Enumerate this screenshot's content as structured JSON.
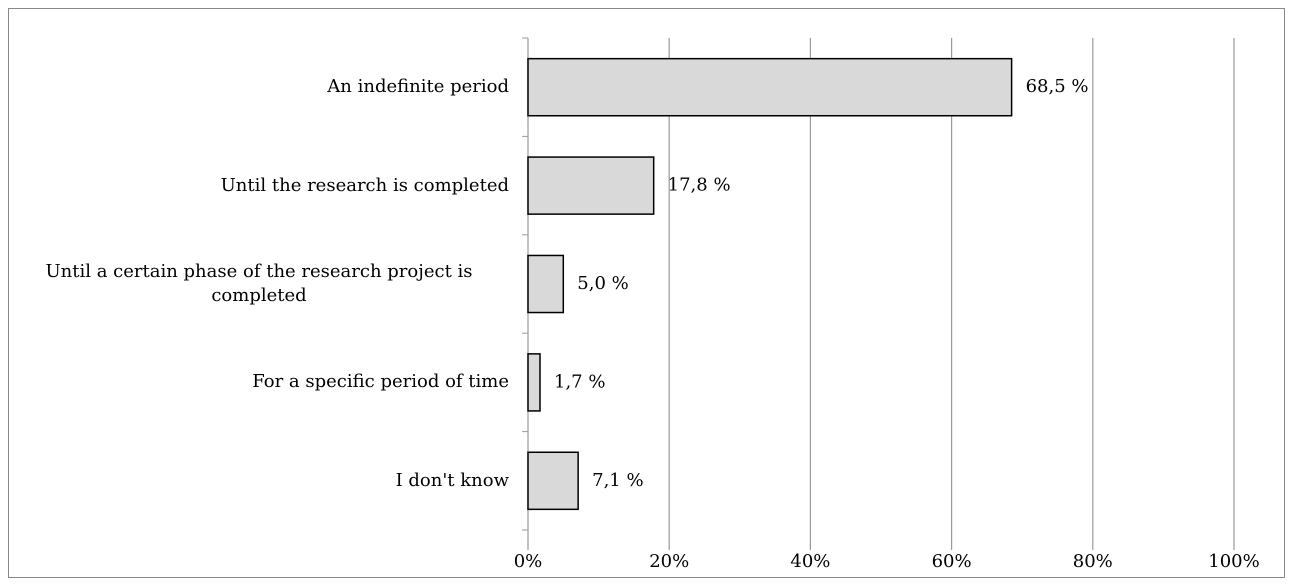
{
  "chart_data": {
    "type": "bar",
    "orientation": "horizontal",
    "categories": [
      "An indefinite period",
      "Until the research is completed",
      "Until a certain phase of the research project is completed",
      "For a specific period of time",
      "I don't know"
    ],
    "values": [
      68.5,
      17.8,
      5.0,
      1.7,
      7.1
    ],
    "value_labels": [
      "68,5 %",
      "17,8 %",
      "5,0 %",
      "1,7 %",
      "7,1 %"
    ],
    "color": "#d9d9d9",
    "xlim": [
      0,
      100
    ],
    "xticks": [
      {
        "value": 0,
        "label": "0%"
      },
      {
        "value": 20,
        "label": "20%"
      },
      {
        "value": 40,
        "label": "40%"
      },
      {
        "value": 60,
        "label": "60%"
      },
      {
        "value": 80,
        "label": "80%"
      },
      {
        "value": 100,
        "label": "100%"
      }
    ],
    "grid": true
  }
}
